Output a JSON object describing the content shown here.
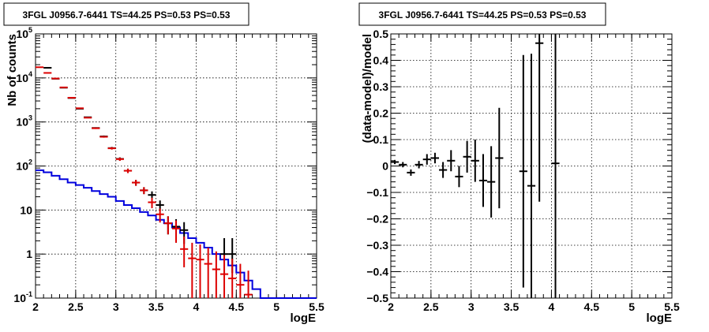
{
  "chart_data": [
    {
      "type": "line",
      "title": "3FGL J0956.7-6441 TS=44.25 PS=0.53 PS=0.53",
      "xlabel": "logE",
      "ylabel": "Nb of counts",
      "xlim": [
        2,
        5.5
      ],
      "ylim": [
        0.1,
        100000
      ],
      "y_scale": "log",
      "grid": true,
      "x_ticks": [
        "2",
        "2.5",
        "3",
        "3.5",
        "4",
        "4.5",
        "5",
        "5.5"
      ],
      "y_ticks": [
        {
          "base": "10",
          "exp": "-1"
        },
        {
          "base": "1",
          "exp": ""
        },
        {
          "base": "10",
          "exp": ""
        },
        {
          "base": "10",
          "exp": "2"
        },
        {
          "base": "10",
          "exp": "3"
        },
        {
          "base": "10",
          "exp": "4"
        },
        {
          "base": "10",
          "exp": "5"
        }
      ],
      "series": [
        {
          "color": "#0000dd",
          "style": "step",
          "bins": [
            2.0,
            2.1,
            2.2,
            2.3,
            2.4,
            2.5,
            2.6,
            2.7,
            2.8,
            2.9,
            3.0,
            3.1,
            3.2,
            3.3,
            3.4,
            3.5,
            3.6,
            3.7,
            3.8,
            3.9,
            4.0,
            4.1,
            4.2,
            4.3,
            4.4,
            4.5,
            4.6,
            4.7,
            4.8,
            4.9,
            5.0,
            5.1,
            5.2,
            5.3,
            5.4,
            5.5
          ],
          "values": [
            80,
            72,
            60,
            50,
            42,
            37,
            32,
            27,
            23,
            20,
            16,
            13,
            11,
            9.0,
            7.5,
            6.0,
            5.0,
            4.0,
            3.0,
            2.3,
            1.8,
            1.4,
            1.0,
            0.75,
            0.55,
            0.38,
            0.25,
            0.16,
            0.1,
            0.1,
            0.1,
            0.1,
            0.1,
            0.1,
            0.1
          ]
        },
        {
          "color": "#000000",
          "style": "errorbar",
          "x": [
            2.15,
            2.25,
            2.35,
            2.45,
            2.55,
            2.65,
            2.75,
            2.85,
            2.95,
            3.05,
            3.15,
            3.25,
            3.35,
            3.45,
            3.55,
            3.65,
            3.75,
            3.85,
            4.35,
            4.45
          ],
          "y": [
            17000,
            9600,
            6000,
            3500,
            2000,
            1280,
            730,
            470,
            255,
            145,
            78,
            42,
            28,
            22,
            13,
            5,
            4.2,
            3.5,
            1.0,
            1.0
          ],
          "err_lo": [
            130,
            100,
            80,
            60,
            45,
            36,
            27,
            22,
            16,
            12,
            9,
            6.5,
            5,
            4.5,
            3.5,
            2.2,
            2.0,
            1.8,
            0.63,
            0.63
          ],
          "err_hi": [
            130,
            100,
            80,
            60,
            45,
            36,
            27,
            22,
            16,
            12,
            9,
            6.5,
            5,
            4.5,
            3.5,
            2.2,
            2.0,
            1.8,
            1.3,
            1.3
          ]
        },
        {
          "color": "#dd0000",
          "style": "errorbar",
          "x": [
            2.05,
            2.15,
            2.25,
            2.35,
            2.45,
            2.55,
            2.65,
            2.75,
            2.85,
            2.95,
            3.05,
            3.15,
            3.25,
            3.35,
            3.45,
            3.55,
            3.65,
            3.75,
            3.85,
            3.95,
            4.05,
            4.15,
            4.25,
            4.35,
            4.45,
            4.55,
            4.65
          ],
          "y": [
            17500,
            13000,
            9700,
            6100,
            3550,
            2050,
            1250,
            720,
            460,
            252,
            143,
            78,
            42,
            28,
            15,
            8,
            5,
            3.8,
            1.3,
            0.8,
            0.75,
            0.6,
            0.45,
            0.35,
            0.28,
            0.2,
            0.12
          ],
          "err_lo": [
            130,
            110,
            100,
            80,
            60,
            45,
            35,
            27,
            21,
            16,
            12,
            9,
            6.5,
            5,
            4,
            2.8,
            2.2,
            2.0,
            0.8,
            0.7,
            0.65,
            0.5,
            0.37,
            0.3,
            0.25,
            0.15,
            0.05
          ],
          "err_hi": [
            130,
            110,
            100,
            80,
            60,
            45,
            35,
            27,
            21,
            16,
            12,
            9,
            6.5,
            5,
            4,
            2.8,
            2.2,
            2.0,
            1.2,
            1.0,
            0.9,
            0.8,
            0.7,
            0.6,
            0.5,
            0.4,
            0.3
          ]
        }
      ]
    },
    {
      "type": "scatter",
      "title": "3FGL J0956.7-6441 TS=44.25 PS=0.53 PS=0.53",
      "xlabel": "logE",
      "ylabel": "(data-model)/model",
      "xlim": [
        2,
        5.5
      ],
      "ylim": [
        -0.5,
        0.5
      ],
      "grid": true,
      "x_ticks": [
        "2",
        "2.5",
        "3",
        "3.5",
        "4",
        "4.5",
        "5",
        "5.5"
      ],
      "y_ticks": [
        "−0.5",
        "−0.4",
        "−0.3",
        "−0.2",
        "−0.1",
        "0",
        "0.1",
        "0.2",
        "0.3",
        "0.4",
        "0.5"
      ],
      "y_tick_values": [
        -0.5,
        -0.4,
        -0.3,
        -0.2,
        -0.1,
        0,
        0.1,
        0.2,
        0.3,
        0.4,
        0.5
      ],
      "series": [
        {
          "color": "#000000",
          "style": "errorbar",
          "x": [
            2.05,
            2.15,
            2.25,
            2.35,
            2.45,
            2.55,
            2.65,
            2.75,
            2.85,
            2.95,
            3.05,
            3.15,
            3.25,
            3.35,
            3.65,
            3.75,
            3.85,
            4.05
          ],
          "y": [
            0.015,
            0.005,
            -0.025,
            0.005,
            0.025,
            0.03,
            -0.015,
            0.02,
            -0.04,
            0.035,
            0.02,
            -0.055,
            -0.06,
            0.03,
            -0.02,
            -0.075,
            0.465,
            0.01
          ],
          "err": [
            0.008,
            0.01,
            0.012,
            0.014,
            0.02,
            0.02,
            0.03,
            0.04,
            0.04,
            0.06,
            0.08,
            0.1,
            0.135,
            0.19,
            0.44,
            0.5,
            0.6,
            0.6
          ]
        }
      ]
    }
  ]
}
